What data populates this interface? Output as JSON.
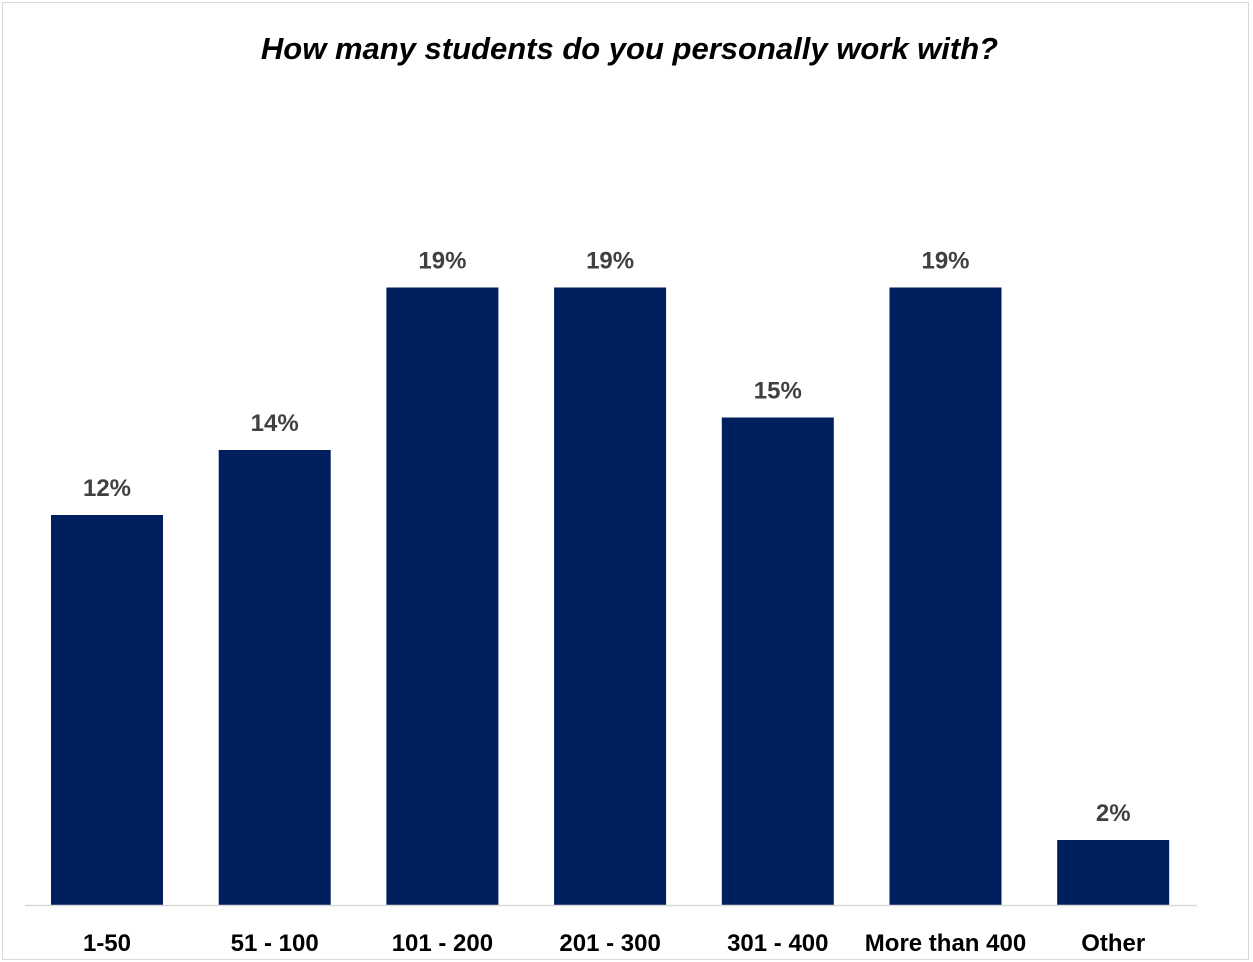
{
  "chart_data": {
    "type": "bar",
    "title": "How many students do you personally work with?",
    "xlabel": "",
    "ylabel": "",
    "categories": [
      "1-50",
      "51 - 100",
      "101 - 200",
      "201 - 300",
      "301 - 400",
      "More than 400",
      "Other"
    ],
    "values": [
      12,
      14,
      19,
      19,
      15,
      19,
      2
    ],
    "value_labels": [
      "12%",
      "14%",
      "19%",
      "19%",
      "15%",
      "19%",
      "2%"
    ],
    "ylim": [
      0,
      20
    ],
    "grid": false,
    "legend": "none",
    "bar_color": "#001F5F"
  }
}
